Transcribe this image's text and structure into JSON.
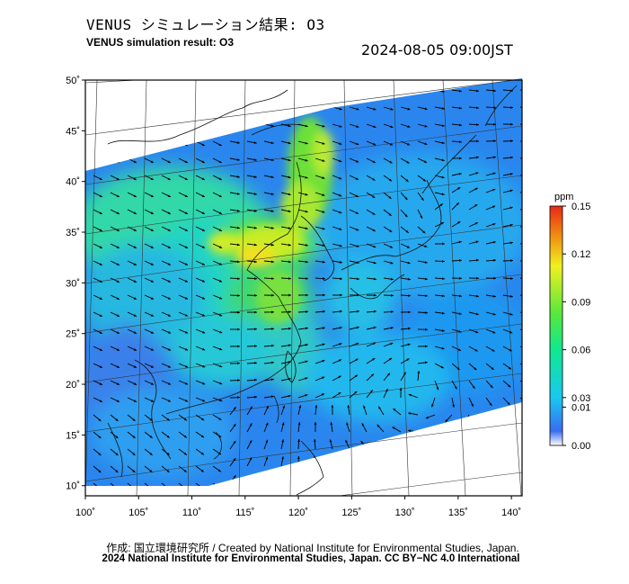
{
  "header": {
    "title_jp": "VENUS シミュレーション結果: O3",
    "title_en": "VENUS simulation result: O3",
    "datetime": "2024-08-05 09:00JST"
  },
  "chart_data": {
    "type": "heatmap",
    "variable": "O3",
    "x_ticks": [
      "100˚",
      "105˚",
      "110˚",
      "115˚",
      "120˚",
      "125˚",
      "130˚",
      "135˚",
      "140˚"
    ],
    "x_values": [
      100,
      105,
      110,
      115,
      120,
      125,
      130,
      135,
      140
    ],
    "y_ticks": [
      "10˚",
      "15˚",
      "20˚",
      "25˚",
      "30˚",
      "35˚",
      "40˚",
      "45˚",
      "50˚"
    ],
    "y_values": [
      10,
      15,
      20,
      25,
      30,
      35,
      40,
      45,
      50
    ],
    "xlim": [
      100,
      141
    ],
    "ylim": [
      9,
      50
    ],
    "colorbar": {
      "unit": "ppm",
      "ticks": [
        "0.15",
        "0.12",
        "0.09",
        "0.06",
        "0.03",
        "0.01",
        "0.00"
      ],
      "tick_values": [
        0.15,
        0.12,
        0.09,
        0.06,
        0.03,
        0.01,
        0.0
      ],
      "colors": [
        "#ffffff",
        "#3a6cf0",
        "#19c8f0",
        "#10e890",
        "#56e83c",
        "#f0f020",
        "#f08a10",
        "#e82818"
      ]
    },
    "grid": true
  },
  "footer": {
    "credit_line_1": "作成: 国立環境研究所 / Created by National Institute for Environmental Studies, Japan.",
    "credit_line_2": "2024 National Institute for Environmental Studies, Japan. CC BY−NC 4.0 International"
  }
}
